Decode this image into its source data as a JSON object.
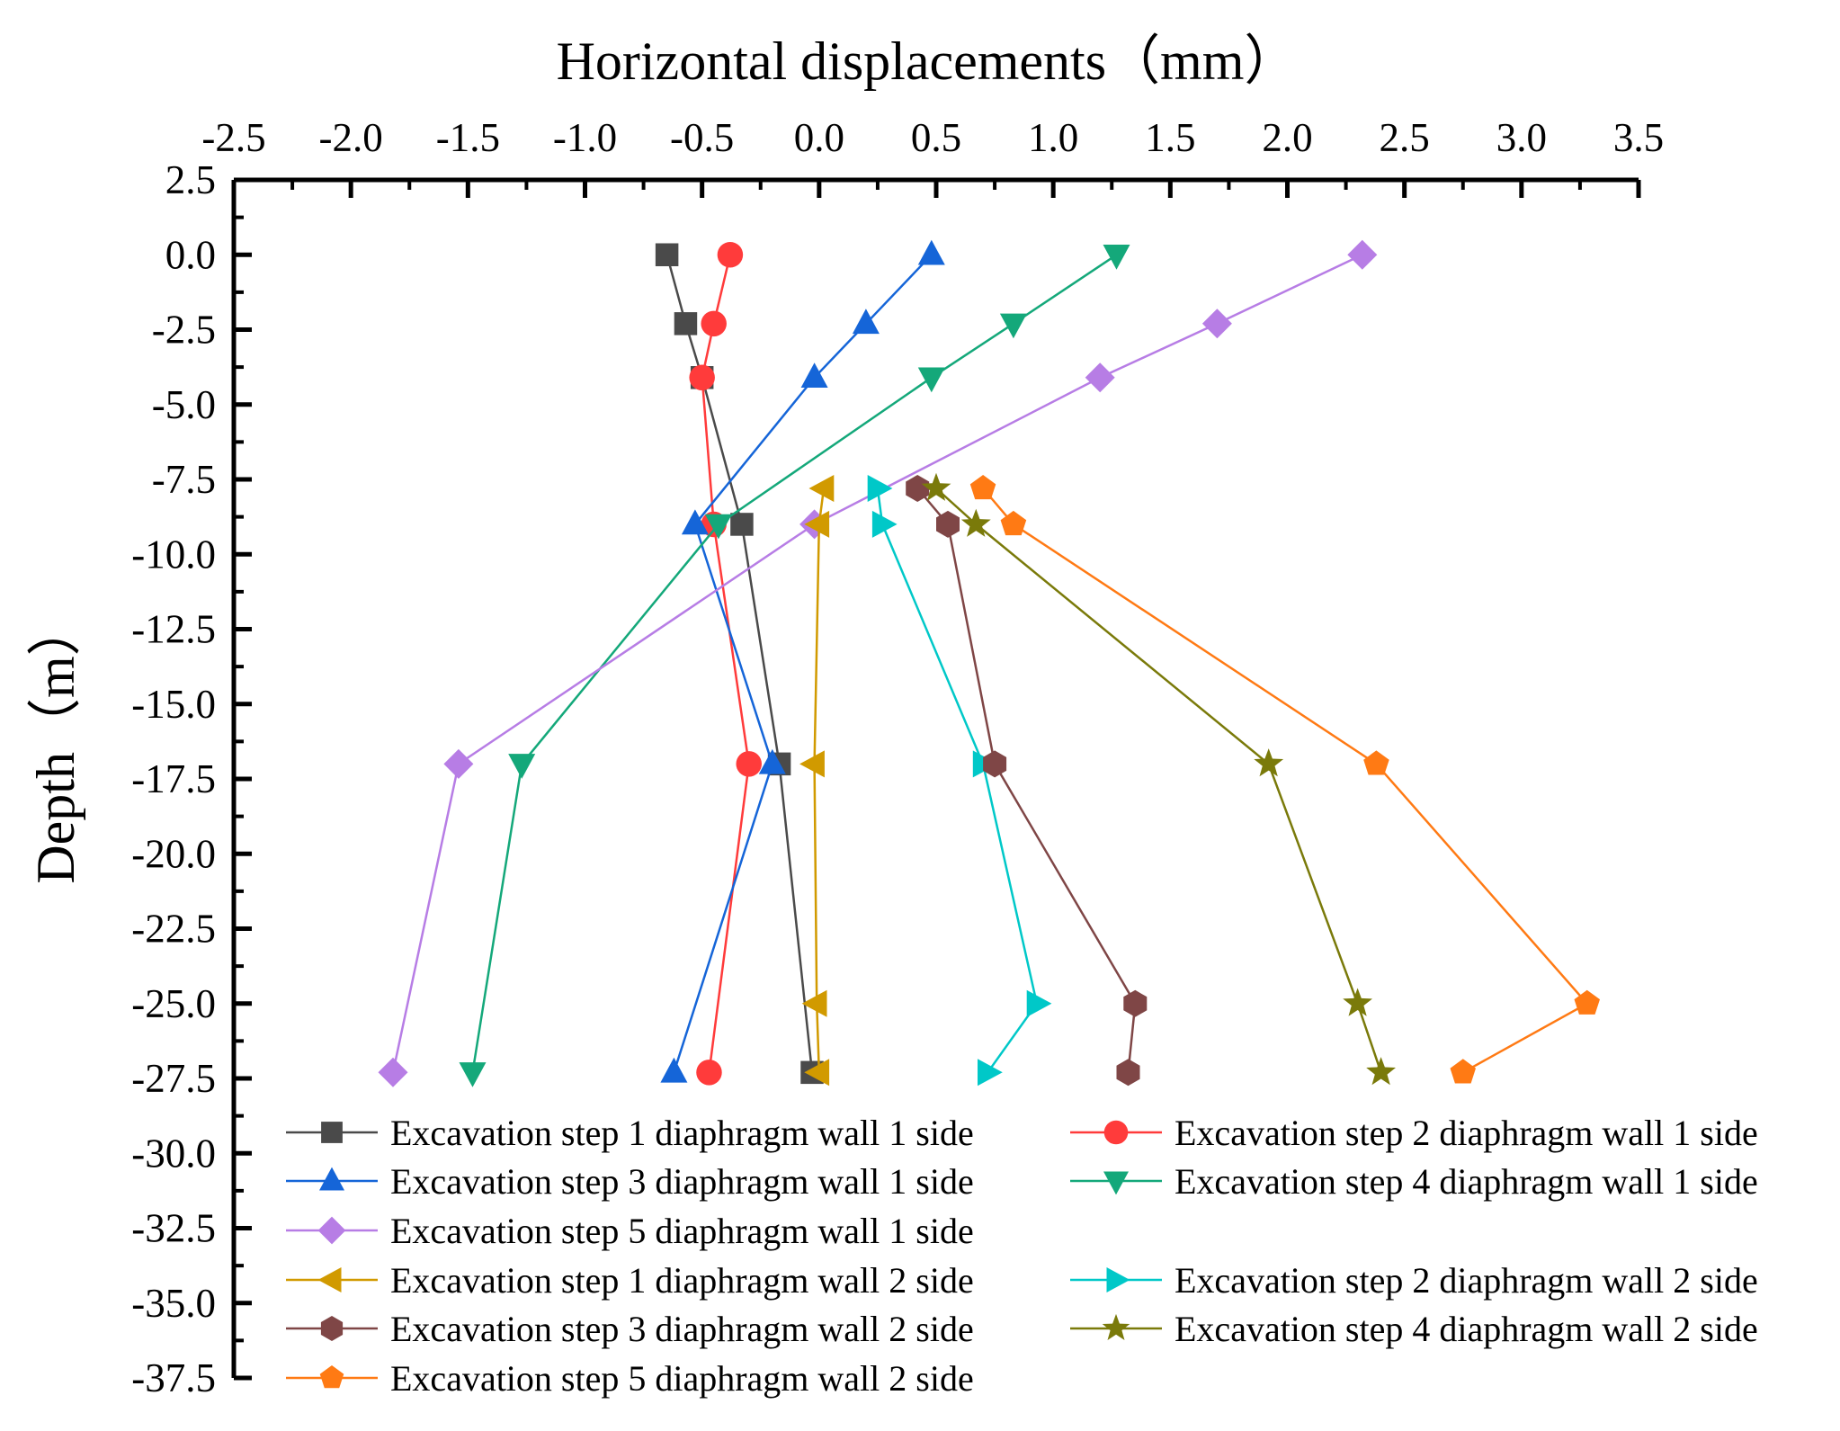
{
  "chart_data": {
    "type": "line",
    "title": "",
    "xlabel": "Horizontal displacements（mm）",
    "ylabel": "Depth（m）",
    "xlim": [
      -2.5,
      3.5
    ],
    "ylim": [
      -37.5,
      2.5
    ],
    "x_axis_position": "top",
    "x_ticks": [
      "-2.5",
      "-2.0",
      "-1.5",
      "-1.0",
      "-0.5",
      "0.0",
      "0.5",
      "1.0",
      "1.5",
      "2.0",
      "2.5",
      "3.0",
      "3.5"
    ],
    "y_ticks": [
      "2.5",
      "0.0",
      "-2.5",
      "-5.0",
      "-7.5",
      "-10.0",
      "-12.5",
      "-15.0",
      "-17.5",
      "-20.0",
      "-22.5",
      "-25.0",
      "-27.5",
      "-30.0",
      "-32.5",
      "-35.0",
      "-37.5"
    ],
    "grid": false,
    "legend_position": "bottom-inside",
    "series": [
      {
        "name": "Excavation step 1 diaphragm wall 1 side",
        "color": "#4a4a4a",
        "marker": "square",
        "points": [
          [
            -0.65,
            0.0
          ],
          [
            -0.57,
            -2.3
          ],
          [
            -0.5,
            -4.1
          ],
          [
            -0.33,
            -9.0
          ],
          [
            -0.17,
            -17.0
          ],
          [
            -0.03,
            -27.3
          ]
        ]
      },
      {
        "name": "Excavation step 2 diaphragm wall 1 side",
        "color": "#ff3b3b",
        "marker": "circle",
        "points": [
          [
            -0.38,
            0.0
          ],
          [
            -0.45,
            -2.3
          ],
          [
            -0.5,
            -4.1
          ],
          [
            -0.45,
            -9.0
          ],
          [
            -0.3,
            -17.0
          ],
          [
            -0.47,
            -27.3
          ]
        ]
      },
      {
        "name": "Excavation step 3 diaphragm wall 1 side",
        "color": "#1565d8",
        "marker": "triangle-up",
        "points": [
          [
            0.48,
            0.0
          ],
          [
            0.2,
            -2.3
          ],
          [
            -0.02,
            -4.1
          ],
          [
            -0.53,
            -9.0
          ],
          [
            -0.2,
            -17.0
          ],
          [
            -0.62,
            -27.3
          ]
        ]
      },
      {
        "name": "Excavation step 4 diaphragm wall 1 side",
        "color": "#14a87a",
        "marker": "triangle-down",
        "points": [
          [
            1.27,
            0.0
          ],
          [
            0.83,
            -2.3
          ],
          [
            0.48,
            -4.1
          ],
          [
            -0.43,
            -9.0
          ],
          [
            -1.27,
            -17.0
          ],
          [
            -1.48,
            -27.3
          ]
        ]
      },
      {
        "name": "Excavation step 5 diaphragm wall 1 side",
        "color": "#b77de5",
        "marker": "diamond",
        "points": [
          [
            2.32,
            0.0
          ],
          [
            1.7,
            -2.3
          ],
          [
            1.2,
            -4.1
          ],
          [
            -0.02,
            -9.0
          ],
          [
            -1.54,
            -17.0
          ],
          [
            -1.82,
            -27.3
          ]
        ]
      },
      {
        "name": "Excavation step 1 diaphragm wall 2 side",
        "color": "#d19a00",
        "marker": "triangle-left",
        "points": [
          [
            0.02,
            -7.8
          ],
          [
            0.0,
            -9.0
          ],
          [
            -0.02,
            -17.0
          ],
          [
            -0.01,
            -25.0
          ],
          [
            0.0,
            -27.3
          ]
        ]
      },
      {
        "name": "Excavation step 2 diaphragm wall 2 side",
        "color": "#00c8c8",
        "marker": "triangle-right",
        "points": [
          [
            0.25,
            -7.8
          ],
          [
            0.27,
            -9.0
          ],
          [
            0.7,
            -17.0
          ],
          [
            0.93,
            -25.0
          ],
          [
            0.72,
            -27.3
          ]
        ]
      },
      {
        "name": "Excavation step 3 diaphragm wall 2 side",
        "color": "#7f4646",
        "marker": "hexagon",
        "points": [
          [
            0.42,
            -7.8
          ],
          [
            0.55,
            -9.0
          ],
          [
            0.75,
            -17.0
          ],
          [
            1.35,
            -25.0
          ],
          [
            1.32,
            -27.3
          ]
        ]
      },
      {
        "name": "Excavation step 4 diaphragm wall 2 side",
        "color": "#7a7a0a",
        "marker": "star",
        "points": [
          [
            0.5,
            -7.8
          ],
          [
            0.67,
            -9.0
          ],
          [
            1.92,
            -17.0
          ],
          [
            2.3,
            -25.0
          ],
          [
            2.4,
            -27.3
          ]
        ]
      },
      {
        "name": "Excavation step 5 diaphragm wall 2 side",
        "color": "#ff7a14",
        "marker": "pentagon",
        "points": [
          [
            0.7,
            -7.8
          ],
          [
            0.83,
            -9.0
          ],
          [
            2.38,
            -17.0
          ],
          [
            3.28,
            -25.0
          ],
          [
            2.75,
            -27.3
          ]
        ]
      }
    ]
  }
}
